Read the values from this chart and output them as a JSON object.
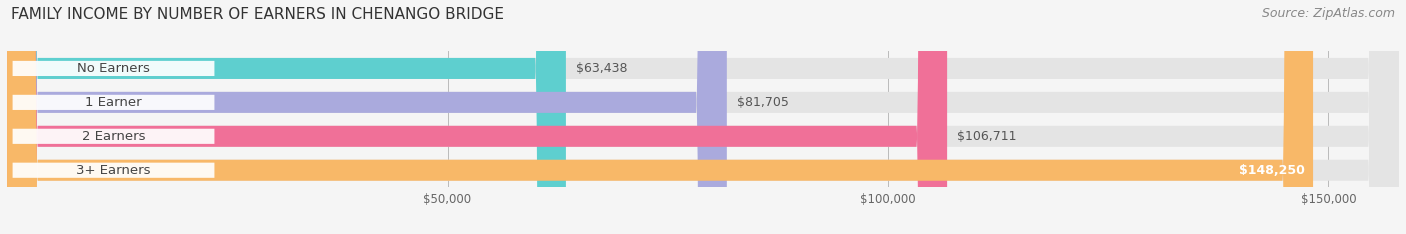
{
  "title": "FAMILY INCOME BY NUMBER OF EARNERS IN CHENANGO BRIDGE",
  "source": "Source: ZipAtlas.com",
  "categories": [
    "No Earners",
    "1 Earner",
    "2 Earners",
    "3+ Earners"
  ],
  "values": [
    63438,
    81705,
    106711,
    148250
  ],
  "bar_colors": [
    "#5ECFCF",
    "#AAAADD",
    "#F07098",
    "#F8B868"
  ],
  "bar_bg_color": "#E4E4E4",
  "value_labels": [
    "$63,438",
    "$81,705",
    "$106,711",
    "$148,250"
  ],
  "xmin": 0,
  "xmax": 158000,
  "xticks": [
    50000,
    100000,
    150000
  ],
  "xtick_labels": [
    "$50,000",
    "$100,000",
    "$150,000"
  ],
  "background_color": "#f5f5f5",
  "title_fontsize": 11,
  "source_fontsize": 9,
  "bar_label_fontsize": 9.5,
  "value_fontsize": 9,
  "bar_height": 0.62
}
